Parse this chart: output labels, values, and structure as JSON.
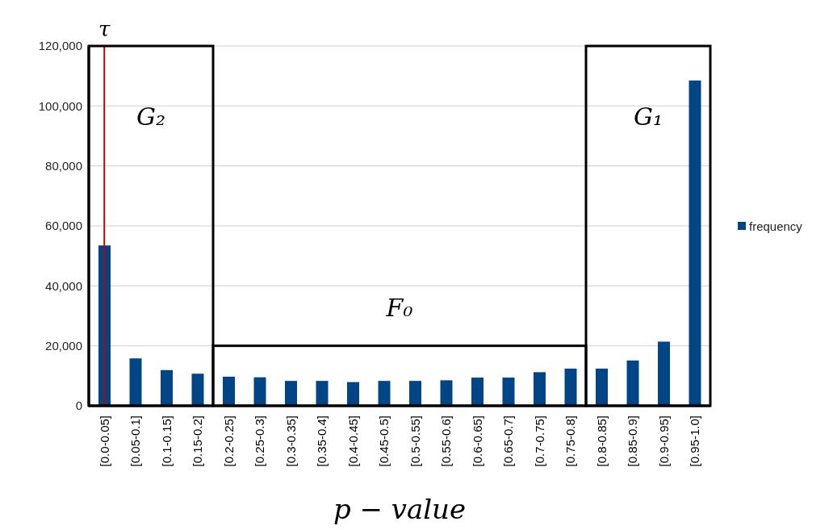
{
  "chart_data": {
    "type": "bar",
    "xlabel": "p − value",
    "categories": [
      "[0.0-0.05]",
      "[0.05-0.1]",
      "[0.1-0.15]",
      "[0.15-0.2]",
      "[0.2-0.25]",
      "[0.25-0.3]",
      "[0.3-0.35]",
      "[0.35-0.4]",
      "[0.4-0.45]",
      "[0.45-0.5]",
      "[0.5-0.55]",
      "[0.55-0.6]",
      "[0.6-0.65]",
      "[0.65-0.7]",
      "[0.7-0.75]",
      "[0.75-0.8]",
      "[0.8-0.85]",
      "[0.85-0.9]",
      "[0.9-0.95]",
      "[0.95-1.0]"
    ],
    "series": [
      {
        "name": "frequency",
        "color": "#004586",
        "values": [
          53500,
          15800,
          11900,
          10700,
          9700,
          9500,
          8300,
          8300,
          7900,
          8300,
          8300,
          8500,
          9400,
          9400,
          11200,
          12400,
          12400,
          15100,
          21400,
          108500
        ]
      }
    ],
    "ylim": [
      0,
      120000
    ],
    "yticks": [
      {
        "value": 0,
        "label": "0"
      },
      {
        "value": 20000,
        "label": "20,000"
      },
      {
        "value": 40000,
        "label": "40,000"
      },
      {
        "value": 60000,
        "label": "60,000"
      },
      {
        "value": 80000,
        "label": "80,000"
      },
      {
        "value": 100000,
        "label": "100,000"
      },
      {
        "value": 120000,
        "label": "120,000"
      }
    ],
    "grid": "y",
    "legend": "right",
    "ref_lines": [
      {
        "axis": "x",
        "value": "[0.0-0.05]",
        "label": "τ",
        "color": "#c00000"
      }
    ],
    "annotations": [
      "G₂",
      "F₀",
      "G₁"
    ]
  }
}
